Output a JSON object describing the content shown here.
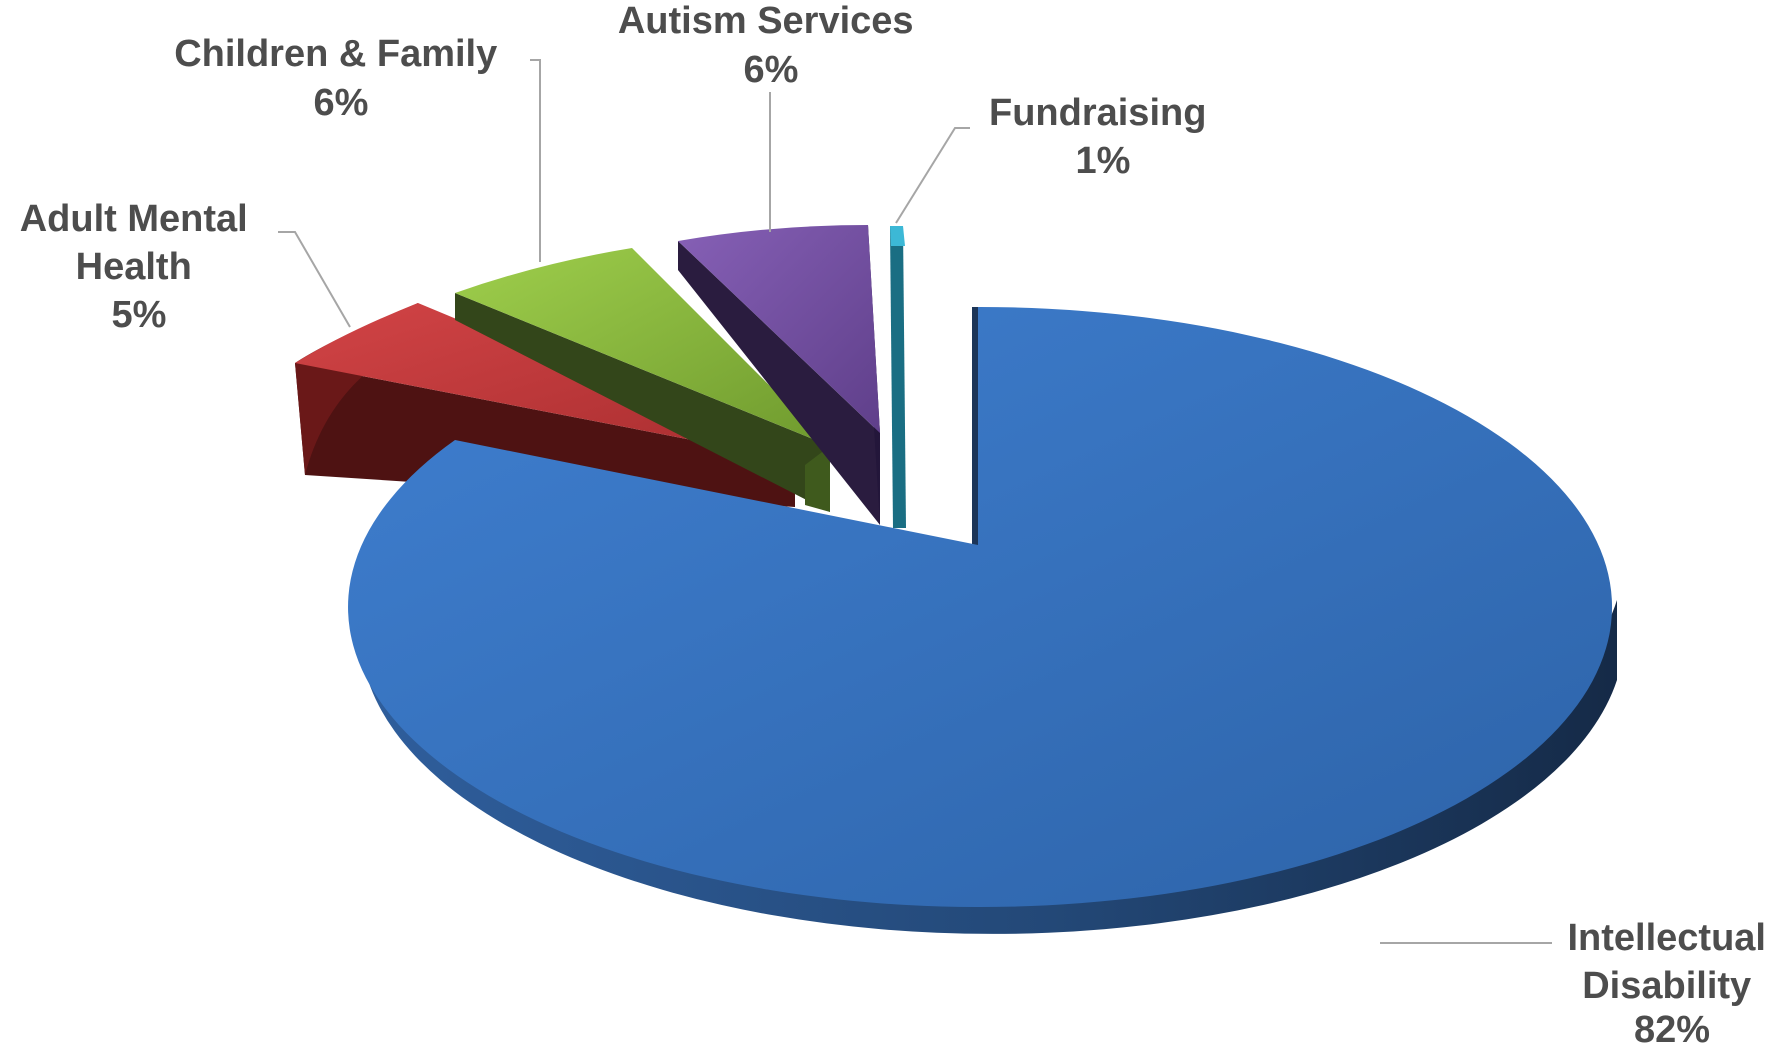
{
  "chart_data": {
    "type": "pie",
    "style": "3d-exploded",
    "title": "",
    "slices": [
      {
        "name": "Intellectual Disability",
        "label_lines": [
          "Intellectual",
          "Disability"
        ],
        "value": 82,
        "value_label": "82%",
        "color": "#3a75c4",
        "side_color": "#1f3f6e"
      },
      {
        "name": "Adult Mental Health",
        "label_lines": [
          "Adult Mental",
          "Health"
        ],
        "value": 5,
        "value_label": "5%",
        "color": "#c0393b",
        "side_color": "#5e1414"
      },
      {
        "name": "Children & Family",
        "label_lines": [
          "Children & Family"
        ],
        "value": 6,
        "value_label": "6%",
        "color": "#8cbf3f",
        "side_color": "#3c5418"
      },
      {
        "name": "Autism Services",
        "label_lines": [
          "Autism Services"
        ],
        "value": 6,
        "value_label": "6%",
        "color": "#7a55a8",
        "side_color": "#2e1f44"
      },
      {
        "name": "Fundraising",
        "label_lines": [
          "Fundraising"
        ],
        "value": 1,
        "value_label": "1%",
        "color": "#3cb8d6",
        "side_color": "#1a6e83"
      }
    ]
  }
}
